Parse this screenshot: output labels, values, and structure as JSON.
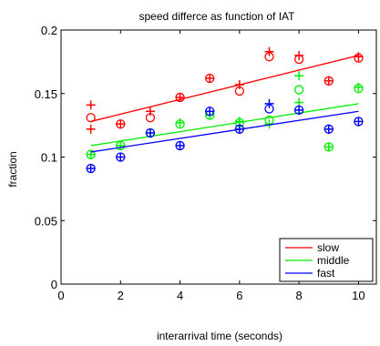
{
  "chart_data": {
    "type": "scatter",
    "title": "speed differce as function of IAT",
    "xlabel": "interarrival time (seconds)",
    "ylabel": "fraction",
    "xlim": [
      0,
      10.6
    ],
    "ylim": [
      0,
      0.2
    ],
    "xticks": [
      0,
      2,
      4,
      6,
      8,
      10
    ],
    "xtick_labels": [
      "0",
      "2",
      "4",
      "6",
      "8",
      "10"
    ],
    "yticks": [
      0,
      0.05,
      0.1,
      0.15,
      0.2
    ],
    "ytick_labels": [
      "0",
      "0.05",
      "0.1",
      "0.15",
      "0.2"
    ],
    "grid": false,
    "legend_position": "bottom-right",
    "series": [
      {
        "name": "slow",
        "color": "#ff0000",
        "circles": [
          [
            1,
            0.131
          ],
          [
            2,
            0.126
          ],
          [
            3,
            0.131
          ],
          [
            4,
            0.147
          ],
          [
            5,
            0.162
          ],
          [
            6,
            0.152
          ],
          [
            7,
            0.179
          ],
          [
            8,
            0.177
          ],
          [
            9,
            0.16
          ],
          [
            10,
            0.178
          ]
        ],
        "pluses": [
          [
            1,
            0.141
          ],
          [
            1,
            0.122
          ],
          [
            2,
            0.126
          ],
          [
            3,
            0.136
          ],
          [
            4,
            0.147
          ],
          [
            5,
            0.162
          ],
          [
            6,
            0.157
          ],
          [
            7,
            0.183
          ],
          [
            8,
            0.18
          ],
          [
            9,
            0.16
          ],
          [
            10,
            0.179
          ]
        ],
        "fit": [
          [
            1,
            0.128
          ],
          [
            10,
            0.18
          ]
        ]
      },
      {
        "name": "middle",
        "color": "#00ee00",
        "circles": [
          [
            1,
            0.102
          ],
          [
            2,
            0.109
          ],
          [
            3,
            0.119
          ],
          [
            4,
            0.126
          ],
          [
            5,
            0.133
          ],
          [
            6,
            0.127
          ],
          [
            7,
            0.129
          ],
          [
            8,
            0.153
          ],
          [
            9,
            0.108
          ],
          [
            10,
            0.154
          ]
        ],
        "pluses": [
          [
            1,
            0.102
          ],
          [
            2,
            0.109
          ],
          [
            3,
            0.119
          ],
          [
            4,
            0.127
          ],
          [
            5,
            0.133
          ],
          [
            6,
            0.128
          ],
          [
            7,
            0.126
          ],
          [
            8,
            0.164
          ],
          [
            8,
            0.143
          ],
          [
            9,
            0.108
          ],
          [
            10,
            0.155
          ]
        ],
        "fit": [
          [
            1,
            0.109
          ],
          [
            10,
            0.142
          ]
        ]
      },
      {
        "name": "fast",
        "color": "#0000ff",
        "circles": [
          [
            1,
            0.091
          ],
          [
            2,
            0.1
          ],
          [
            3,
            0.119
          ],
          [
            4,
            0.109
          ],
          [
            5,
            0.136
          ],
          [
            6,
            0.122
          ],
          [
            7,
            0.138
          ],
          [
            8,
            0.137
          ],
          [
            9,
            0.122
          ],
          [
            10,
            0.128
          ]
        ],
        "pluses": [
          [
            1,
            0.091
          ],
          [
            2,
            0.1
          ],
          [
            3,
            0.119
          ],
          [
            4,
            0.109
          ],
          [
            5,
            0.136
          ],
          [
            6,
            0.122
          ],
          [
            7,
            0.142
          ],
          [
            8,
            0.137
          ],
          [
            9,
            0.122
          ],
          [
            10,
            0.128
          ]
        ],
        "fit": [
          [
            1,
            0.104
          ],
          [
            10,
            0.136
          ]
        ]
      }
    ]
  }
}
